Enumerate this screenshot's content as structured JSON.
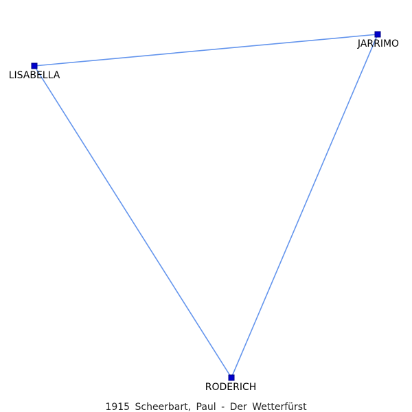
{
  "network": {
    "edge_color": "#6495ed",
    "node_fill": "#0000cd",
    "node_stroke": "#000080",
    "nodes": [
      {
        "id": "lisabella",
        "label": "LISABELLA"
      },
      {
        "id": "jarrimo",
        "label": "JARRIMO"
      },
      {
        "id": "roderich",
        "label": "RODERICH"
      }
    ],
    "edges": [
      {
        "source": "lisabella",
        "target": "jarrimo"
      },
      {
        "source": "jarrimo",
        "target": "roderich"
      },
      {
        "source": "lisabella",
        "target": "roderich"
      }
    ]
  },
  "caption": "1915 Scheerbart, Paul - Der Wetterfürst"
}
